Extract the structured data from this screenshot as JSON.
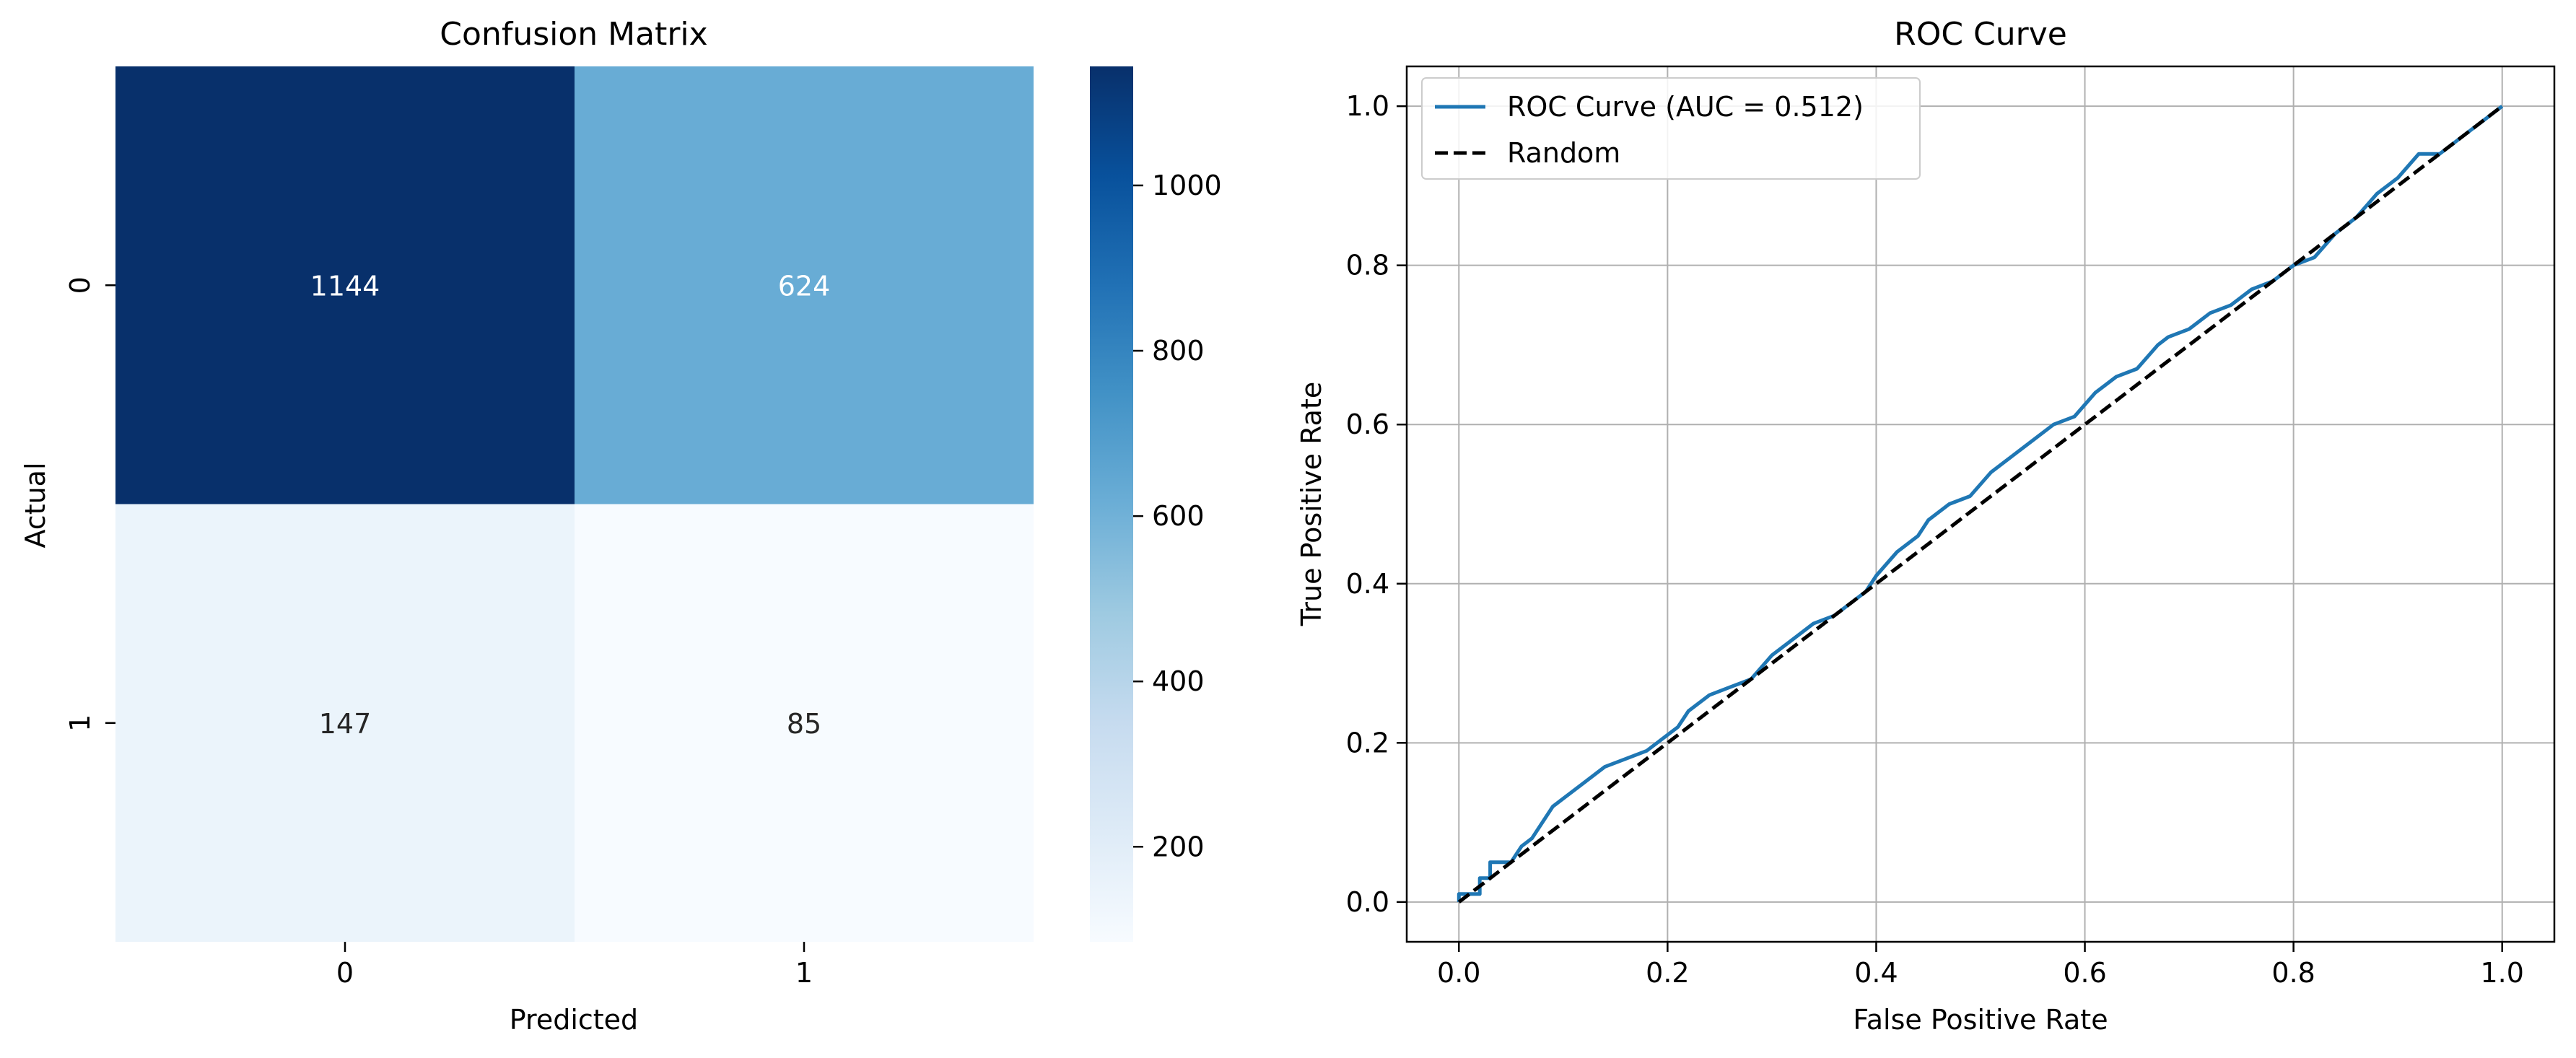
{
  "chart_data": [
    {
      "type": "heatmap",
      "title": "Confusion Matrix",
      "xlabel": "Predicted",
      "ylabel": "Actual",
      "x_categories": [
        "0",
        "1"
      ],
      "y_categories": [
        "0",
        "1"
      ],
      "values": [
        [
          1144,
          624
        ],
        [
          147,
          85
        ]
      ],
      "colormap": "Blues",
      "colorbar": {
        "range": [
          85,
          1144
        ],
        "ticks": [
          200,
          400,
          600,
          800,
          1000
        ]
      }
    },
    {
      "type": "line",
      "title": "ROC Curve",
      "xlabel": "False Positive Rate",
      "ylabel": "True Positive Rate",
      "xlim": [
        -0.05,
        1.05
      ],
      "ylim": [
        -0.05,
        1.05
      ],
      "xticks": [
        0.0,
        0.2,
        0.4,
        0.6,
        0.8,
        1.0
      ],
      "yticks": [
        0.0,
        0.2,
        0.4,
        0.6,
        0.8,
        1.0
      ],
      "grid": true,
      "legend_position": "upper-left",
      "series": [
        {
          "name": "ROC Curve (AUC = 0.512)",
          "color": "#1f77b4",
          "style": "solid",
          "x": [
            0.0,
            0.0,
            0.02,
            0.02,
            0.03,
            0.03,
            0.05,
            0.06,
            0.07,
            0.08,
            0.09,
            0.1,
            0.12,
            0.14,
            0.16,
            0.18,
            0.19,
            0.2,
            0.21,
            0.22,
            0.24,
            0.26,
            0.28,
            0.3,
            0.32,
            0.34,
            0.36,
            0.38,
            0.39,
            0.4,
            0.42,
            0.44,
            0.45,
            0.47,
            0.49,
            0.51,
            0.53,
            0.55,
            0.57,
            0.59,
            0.61,
            0.62,
            0.63,
            0.65,
            0.67,
            0.68,
            0.7,
            0.72,
            0.74,
            0.76,
            0.78,
            0.8,
            0.82,
            0.84,
            0.86,
            0.88,
            0.9,
            0.92,
            0.94,
            0.96,
            0.98,
            1.0
          ],
          "y": [
            0.0,
            0.01,
            0.01,
            0.03,
            0.03,
            0.05,
            0.05,
            0.07,
            0.08,
            0.1,
            0.12,
            0.13,
            0.15,
            0.17,
            0.18,
            0.19,
            0.2,
            0.21,
            0.22,
            0.24,
            0.26,
            0.27,
            0.28,
            0.31,
            0.33,
            0.35,
            0.36,
            0.38,
            0.39,
            0.41,
            0.44,
            0.46,
            0.48,
            0.5,
            0.51,
            0.54,
            0.56,
            0.58,
            0.6,
            0.61,
            0.64,
            0.65,
            0.66,
            0.67,
            0.7,
            0.71,
            0.72,
            0.74,
            0.75,
            0.77,
            0.78,
            0.8,
            0.81,
            0.84,
            0.86,
            0.89,
            0.91,
            0.94,
            0.94,
            0.96,
            0.98,
            1.0
          ]
        },
        {
          "name": "Random",
          "color": "#000000",
          "style": "dashed",
          "x": [
            0.0,
            1.0
          ],
          "y": [
            0.0,
            1.0
          ]
        }
      ]
    }
  ]
}
